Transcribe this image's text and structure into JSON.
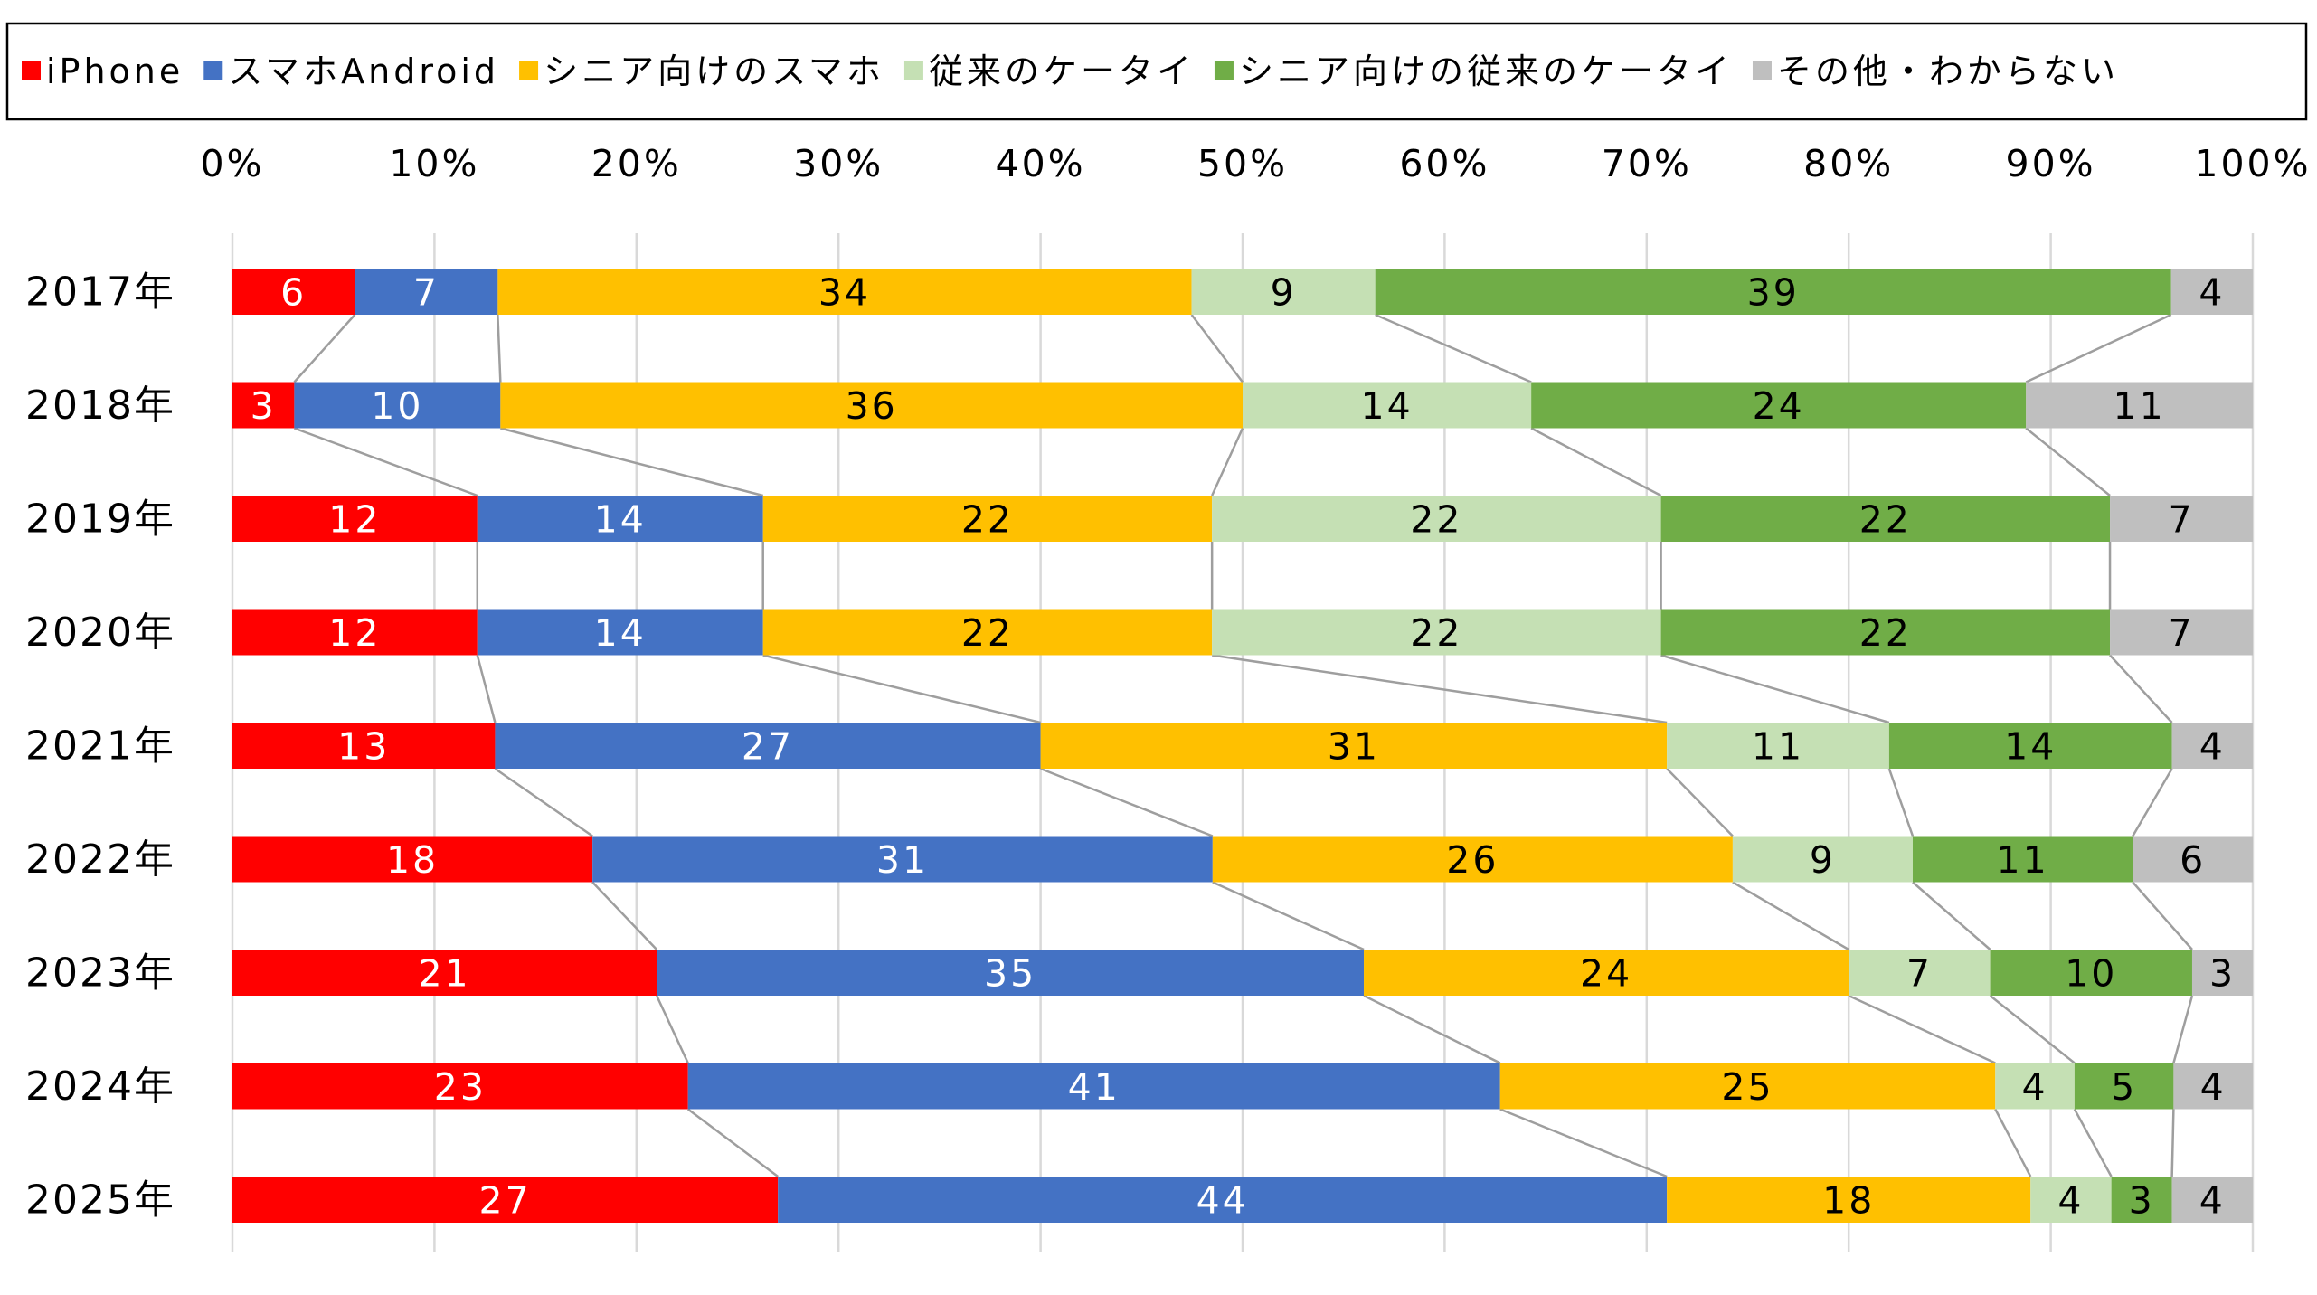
{
  "chart_data": {
    "type": "bar",
    "orientation": "horizontal",
    "stacked": "percent",
    "connector_lines": true,
    "categories": [
      "2017年",
      "2018年",
      "2019年",
      "2020年",
      "2021年",
      "2022年",
      "2023年",
      "2024年",
      "2025年"
    ],
    "series": [
      {
        "name": "iPhone",
        "color": "#ff0000",
        "label_color": "#ffffff",
        "values": [
          6,
          3,
          12,
          12,
          13,
          18,
          21,
          23,
          27
        ]
      },
      {
        "name": "スマホAndroid",
        "color": "#4472c4",
        "label_color": "#ffffff",
        "values": [
          7,
          10,
          14,
          14,
          27,
          31,
          35,
          41,
          44
        ]
      },
      {
        "name": "シニア向けのスマホ",
        "color": "#ffc000",
        "label_color": "#000000",
        "values": [
          34,
          36,
          22,
          22,
          31,
          26,
          24,
          25,
          18
        ]
      },
      {
        "name": "従来のケータイ",
        "color": "#c5e0b4",
        "label_color": "#000000",
        "values": [
          9,
          14,
          22,
          22,
          11,
          9,
          7,
          4,
          4
        ]
      },
      {
        "name": "シニア向けの従来のケータイ",
        "color": "#70ad47",
        "label_color": "#000000",
        "values": [
          39,
          24,
          22,
          22,
          14,
          11,
          10,
          5,
          3
        ]
      },
      {
        "name": "その他・わからない",
        "color": "#bfbfbf",
        "label_color": "#000000",
        "values": [
          4,
          11,
          7,
          7,
          4,
          6,
          3,
          4,
          4
        ]
      }
    ],
    "x_ticks": [
      "0%",
      "10%",
      "20%",
      "30%",
      "40%",
      "50%",
      "60%",
      "70%",
      "80%",
      "90%",
      "100%"
    ],
    "xlim": [
      0,
      100
    ],
    "grid": true,
    "legend_position": "top"
  }
}
